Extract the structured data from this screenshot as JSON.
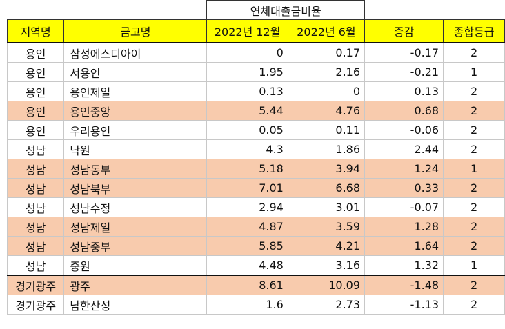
{
  "group_header": "연체대출금비율",
  "columns": {
    "region": "지역명",
    "name": "금고명",
    "dec2022": "2022년 12월",
    "jun2022": "2022년 6월",
    "change": "증감",
    "grade": "종합등급"
  },
  "highlight_color": "#f8cbad",
  "header_color": "#ffff00",
  "rows": [
    {
      "region": "용인",
      "name": "삼성에스디아이",
      "dec2022": "0",
      "jun2022": "0.17",
      "change": "-0.17",
      "grade": "2"
    },
    {
      "region": "용인",
      "name": "서용인",
      "dec2022": "1.95",
      "jun2022": "2.16",
      "change": "-0.21",
      "grade": "1"
    },
    {
      "region": "용인",
      "name": "용인제일",
      "dec2022": "0.13",
      "jun2022": "0",
      "change": "0.13",
      "grade": "2"
    },
    {
      "region": "용인",
      "name": "용인중앙",
      "dec2022": "5.44",
      "jun2022": "4.76",
      "change": "0.68",
      "grade": "2"
    },
    {
      "region": "용인",
      "name": "우리용인",
      "dec2022": "0.05",
      "jun2022": "0.11",
      "change": "-0.06",
      "grade": "2"
    },
    {
      "region": "성남",
      "name": "낙원",
      "dec2022": "4.3",
      "jun2022": "1.86",
      "change": "2.44",
      "grade": "2"
    },
    {
      "region": "성남",
      "name": "성남동부",
      "dec2022": "5.18",
      "jun2022": "3.94",
      "change": "1.24",
      "grade": "1"
    },
    {
      "region": "성남",
      "name": "성남북부",
      "dec2022": "7.01",
      "jun2022": "6.68",
      "change": "0.33",
      "grade": "2"
    },
    {
      "region": "성남",
      "name": "성남수정",
      "dec2022": "2.94",
      "jun2022": "3.01",
      "change": "-0.07",
      "grade": "2"
    },
    {
      "region": "성남",
      "name": "성남제일",
      "dec2022": "4.87",
      "jun2022": "3.59",
      "change": "1.28",
      "grade": "2"
    },
    {
      "region": "성남",
      "name": "성남중부",
      "dec2022": "5.85",
      "jun2022": "4.21",
      "change": "1.64",
      "grade": "2"
    },
    {
      "region": "성남",
      "name": "중원",
      "dec2022": "4.48",
      "jun2022": "3.16",
      "change": "1.32",
      "grade": "1"
    },
    {
      "region": "경기광주",
      "name": "광주",
      "dec2022": "8.61",
      "jun2022": "10.09",
      "change": "-1.48",
      "grade": "2"
    },
    {
      "region": "경기광주",
      "name": "남한산성",
      "dec2022": "1.6",
      "jun2022": "2.73",
      "change": "-1.13",
      "grade": "2"
    }
  ]
}
